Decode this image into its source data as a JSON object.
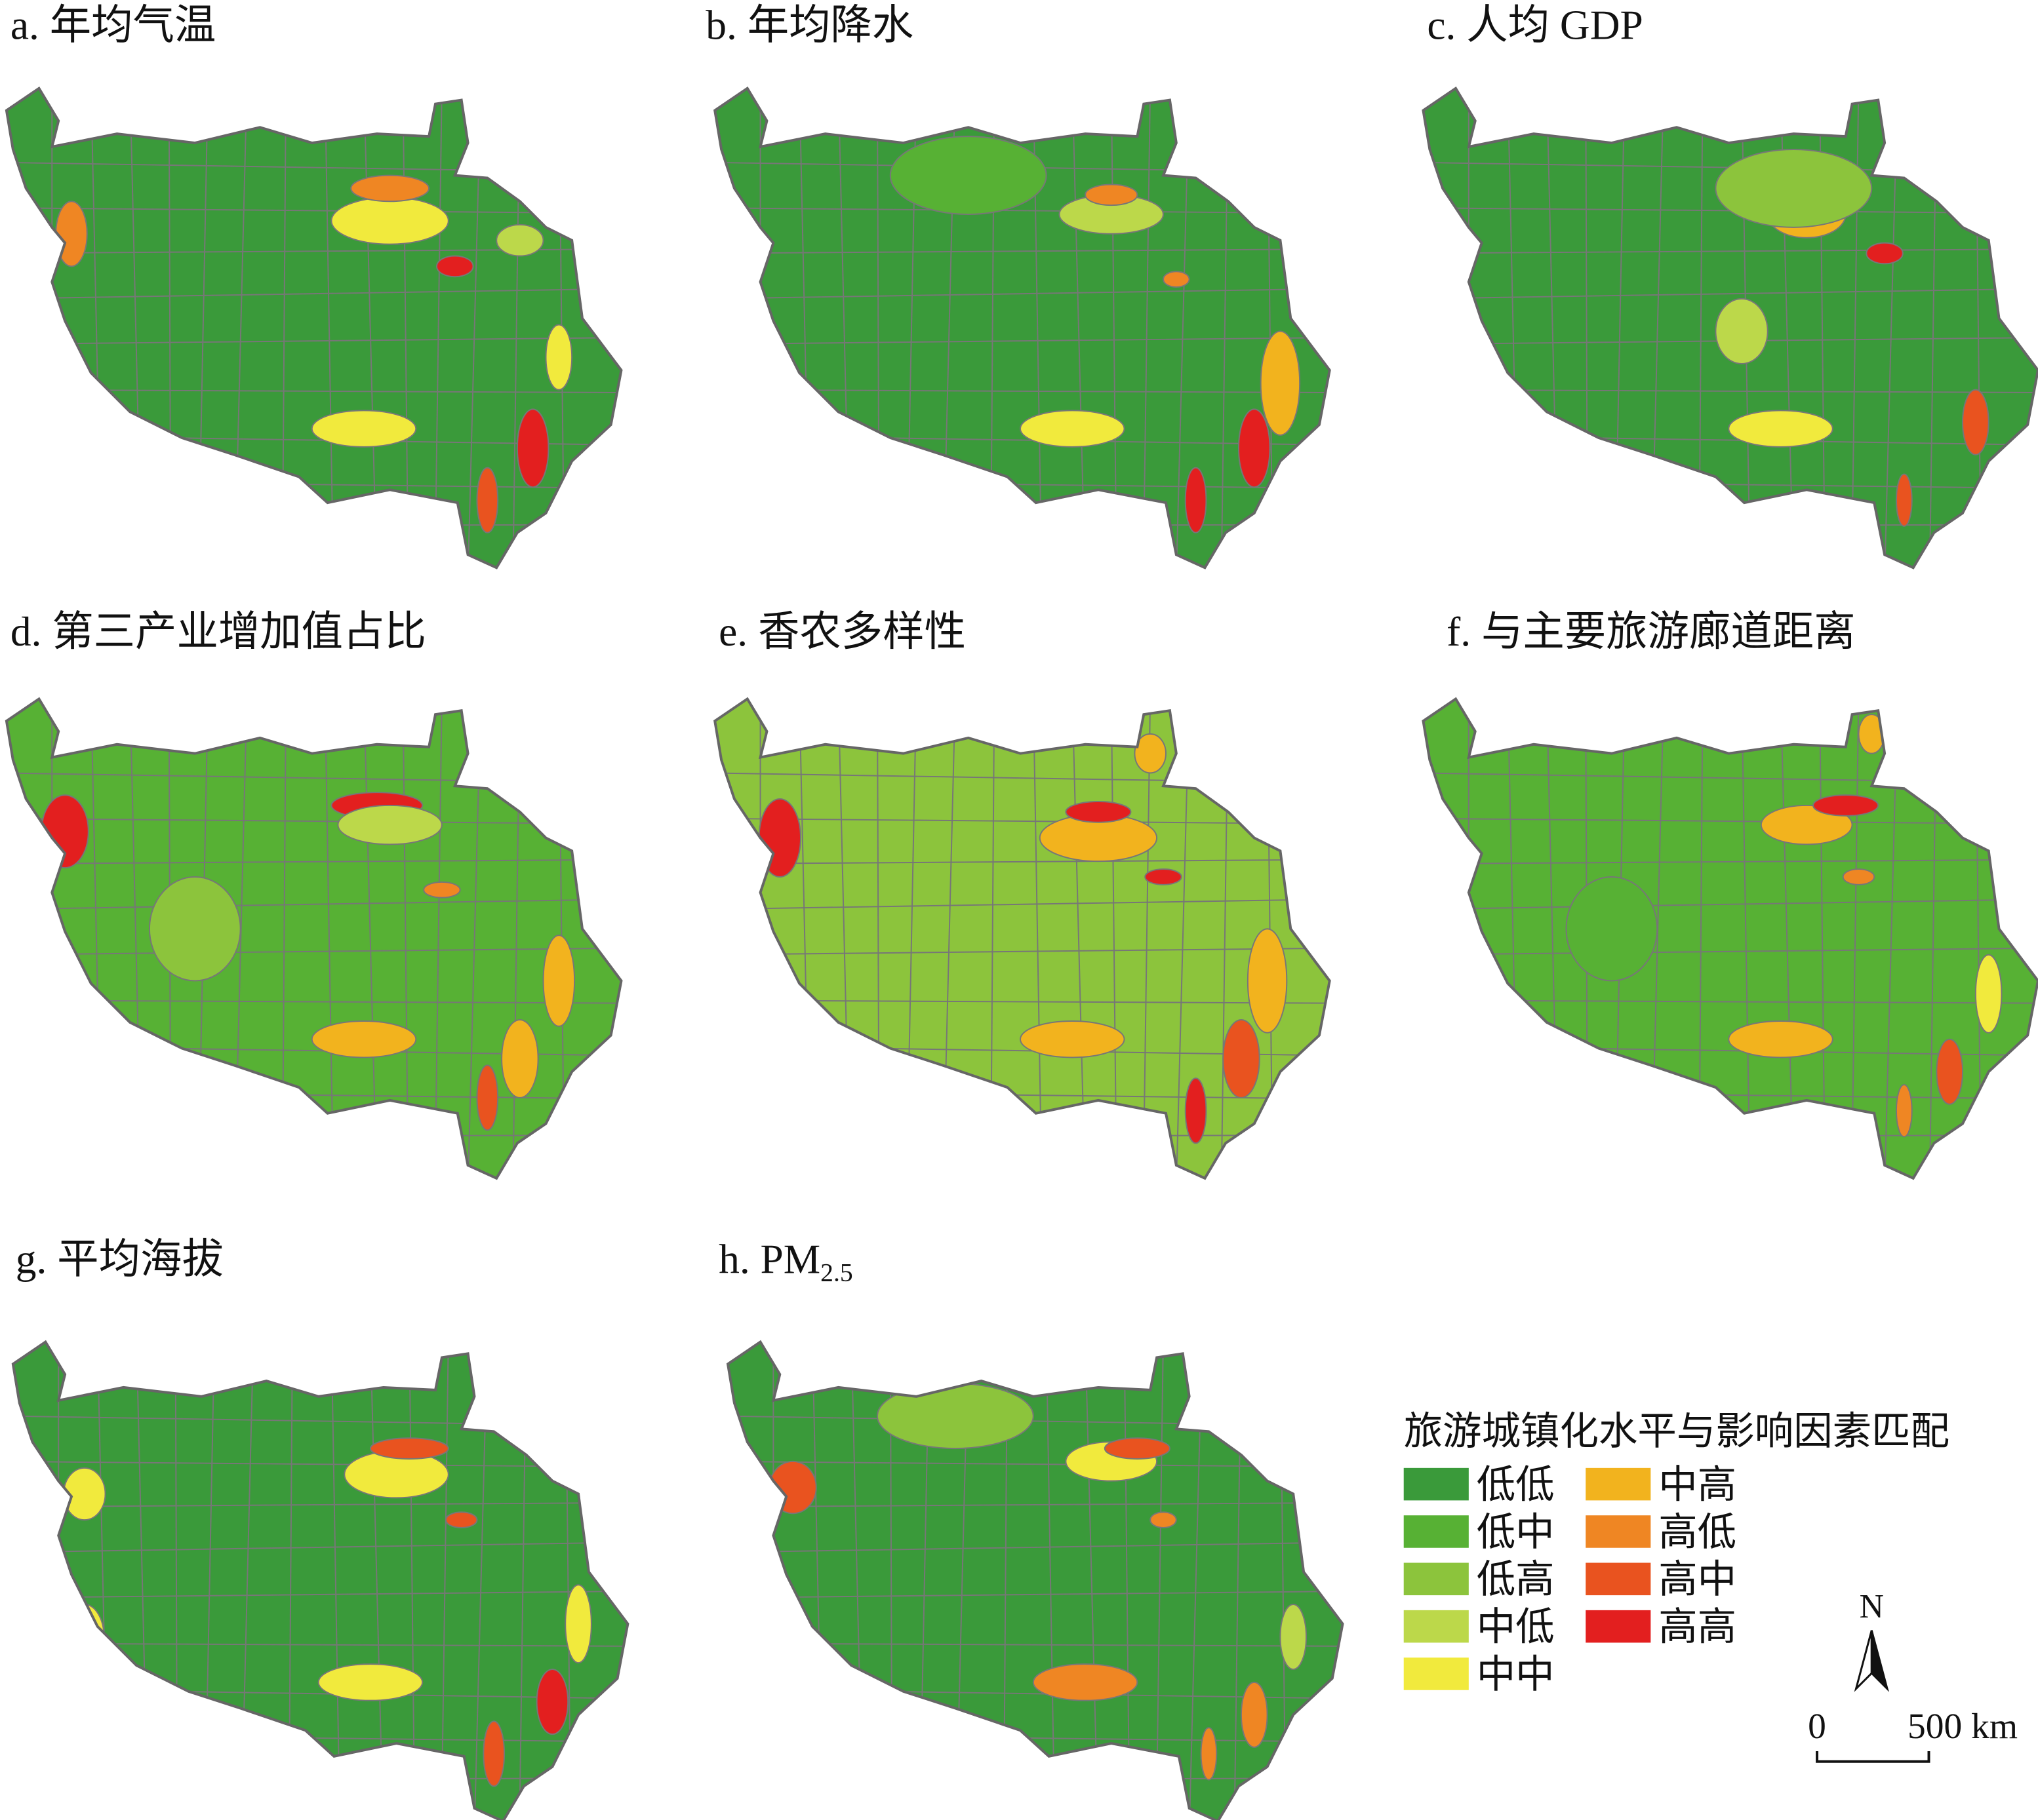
{
  "panels": [
    {
      "title": "a. 年均气温"
    },
    {
      "title": "b. 年均降水"
    },
    {
      "title": "c. 人均 GDP"
    },
    {
      "title": "d. 第三产业增加值占比"
    },
    {
      "title": "e. 香农多样性"
    },
    {
      "title": "f. 与主要旅游廊道距离"
    },
    {
      "title": "g. 平均海拔"
    },
    {
      "title": "h. PM",
      "subscript": "2.5"
    }
  ],
  "legend": {
    "title": "旅游城镇化水平与影响因素匹配",
    "items": [
      {
        "name": "低低",
        "color": "#3a9a3a"
      },
      {
        "name": "低中",
        "color": "#57b134"
      },
      {
        "name": "低高",
        "color": "#8cc43c"
      },
      {
        "name": "中低",
        "color": "#bcd84a"
      },
      {
        "name": "中中",
        "color": "#f1ea3d"
      },
      {
        "name": "中高",
        "color": "#f2b31e"
      },
      {
        "name": "高低",
        "color": "#ef8623"
      },
      {
        "name": "高中",
        "color": "#e9531f"
      },
      {
        "name": "高高",
        "color": "#e31f1f"
      }
    ]
  },
  "north_label": "N",
  "scale_bar": {
    "start": "0",
    "end": "500 km"
  }
}
